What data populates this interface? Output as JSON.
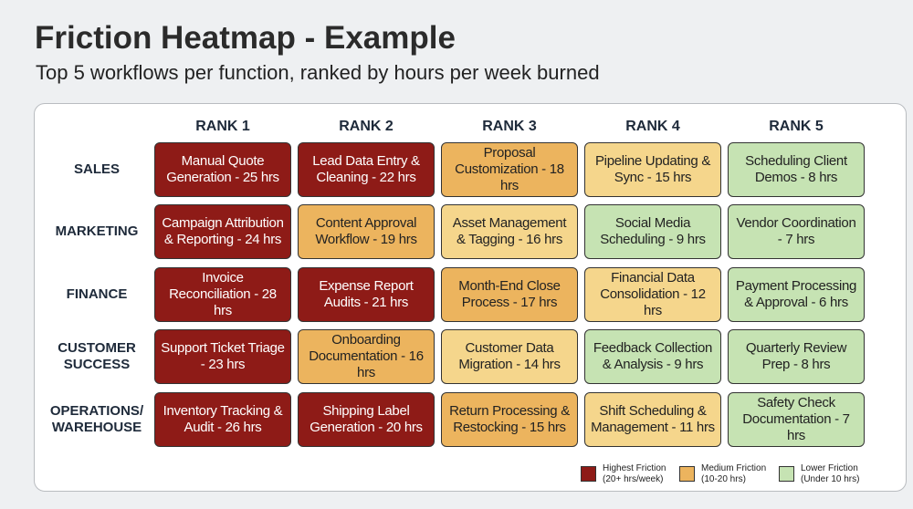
{
  "header": {
    "title": "Friction Heatmap - Example",
    "subtitle": "Top 5 workflows per function, ranked by hours per week burned"
  },
  "table": {
    "columns": [
      "RANK 1",
      "RANK 2",
      "RANK 3",
      "RANK 4",
      "RANK 5"
    ],
    "rows": [
      {
        "label": "SALES",
        "cells": [
          {
            "text": "Manual Quote Generation - 25 hrs",
            "color": "#8e1b17"
          },
          {
            "text": "Lead Data Entry & Cleaning - 22 hrs",
            "color": "#8e1b17"
          },
          {
            "text": "Proposal Customization - 18 hrs",
            "color": "#ecb45e"
          },
          {
            "text": "Pipeline Updating & Sync - 15 hrs",
            "color": "#f5d68c"
          },
          {
            "text": "Scheduling Client Demos - 8 hrs",
            "color": "#c6e3b3"
          }
        ]
      },
      {
        "label": "MARKETING",
        "cells": [
          {
            "text": "Campaign Attribution & Reporting - 24 hrs",
            "color": "#8e1b17"
          },
          {
            "text": "Content Approval Workflow - 19 hrs",
            "color": "#ecb45e"
          },
          {
            "text": "Asset Management & Tagging - 16 hrs",
            "color": "#f5d68c"
          },
          {
            "text": "Social Media Scheduling - 9 hrs",
            "color": "#c6e3b3"
          },
          {
            "text": "Vendor Coordination - 7 hrs",
            "color": "#c6e3b3"
          }
        ]
      },
      {
        "label": "FINANCE",
        "cells": [
          {
            "text": "Invoice Reconciliation - 28 hrs",
            "color": "#8e1b17"
          },
          {
            "text": "Expense Report Audits - 21 hrs",
            "color": "#8e1b17"
          },
          {
            "text": "Month-End Close Process - 17 hrs",
            "color": "#ecb45e"
          },
          {
            "text": "Financial Data Consolidation - 12 hrs",
            "color": "#f5d68c"
          },
          {
            "text": "Payment Processing & Approval - 6 hrs",
            "color": "#c6e3b3"
          }
        ]
      },
      {
        "label": "CUSTOMER SUCCESS",
        "cells": [
          {
            "text": "Support Ticket Triage - 23 hrs",
            "color": "#8e1b17"
          },
          {
            "text": "Onboarding Documentation - 16 hrs",
            "color": "#ecb45e"
          },
          {
            "text": "Customer Data Migration - 14 hrs",
            "color": "#f5d68c"
          },
          {
            "text": "Feedback Collection & Analysis - 9 hrs",
            "color": "#c6e3b3"
          },
          {
            "text": "Quarterly Review Prep - 8 hrs",
            "color": "#c6e3b3"
          }
        ]
      },
      {
        "label": "OPERATIONS/ WAREHOUSE",
        "cells": [
          {
            "text": "Inventory Tracking & Audit - 26 hrs",
            "color": "#8e1b17"
          },
          {
            "text": "Shipping Label Generation - 20 hrs",
            "color": "#8e1b17"
          },
          {
            "text": "Return Processing & Restocking - 15 hrs",
            "color": "#ecb45e"
          },
          {
            "text": "Shift Scheduling & Management - 11 hrs",
            "color": "#f5d68c"
          },
          {
            "text": "Safety Check Documentation - 7 hrs",
            "color": "#c6e3b3"
          }
        ]
      }
    ]
  },
  "legend": [
    {
      "label": "Highest Friction",
      "note": "(20+ hrs/week)",
      "color": "#8e1b17"
    },
    {
      "label": "Medium Friction",
      "note": "(10-20 hrs)",
      "color": "#ecb45e"
    },
    {
      "label": "Lower Friction",
      "note": "(Under 10 hrs)",
      "color": "#c6e3b3"
    }
  ]
}
